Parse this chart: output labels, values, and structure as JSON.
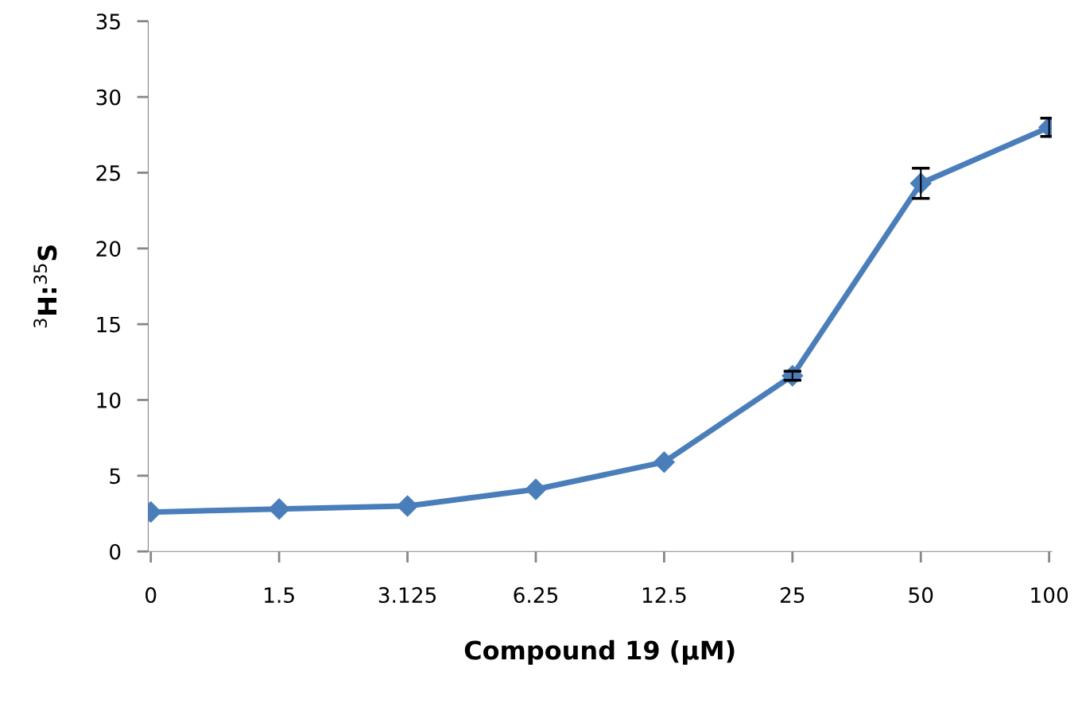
{
  "chart_data": {
    "type": "line",
    "xlabel": "Compound 19 (µM)",
    "ylabel": "$^{3}$H:$^{35}$S",
    "categories": [
      "0",
      "1.5",
      "3.125",
      "6.25",
      "12.5",
      "25",
      "50",
      "100"
    ],
    "series": [
      {
        "color": "#4a7ebb",
        "values": [
          2.6,
          2.8,
          3.0,
          4.1,
          5.9,
          11.6,
          24.3,
          28.0
        ],
        "errors": [
          null,
          null,
          null,
          null,
          null,
          0.3,
          1.0,
          0.6
        ]
      }
    ],
    "ylim": [
      0,
      35
    ],
    "yticks": [
      0,
      5,
      10,
      15,
      20,
      25,
      30,
      35
    ],
    "grid": false,
    "legend": false,
    "marker": "diamond",
    "line_style": "solid"
  }
}
